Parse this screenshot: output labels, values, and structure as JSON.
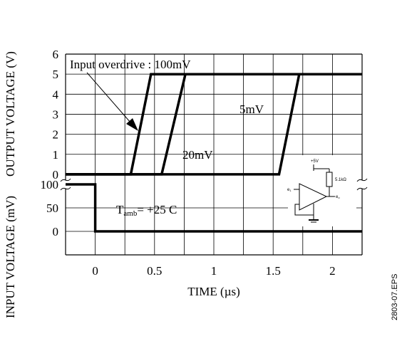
{
  "chart_data": {
    "type": "line",
    "xlabel": "TIME (µs)",
    "x_ticks": [
      "0",
      "0.5",
      "1",
      "1.5",
      "2"
    ],
    "xlim": [
      -0.25,
      2.25
    ],
    "output_panel": {
      "ylabel": "OUTPUT VOLTAGE (V)",
      "y_ticks": [
        "0",
        "1",
        "2",
        "3",
        "4",
        "5",
        "6"
      ],
      "ylim": [
        -0.5,
        6
      ],
      "series": [
        {
          "name": "100mV",
          "x": [
            -0.25,
            0.3,
            0.47,
            2.25
          ],
          "y": [
            0,
            0,
            5,
            5
          ]
        },
        {
          "name": "20mV",
          "x": [
            -0.25,
            0.56,
            0.76,
            2.25
          ],
          "y": [
            0,
            0,
            5,
            5
          ]
        },
        {
          "name": "5mV",
          "x": [
            -0.25,
            1.55,
            1.72,
            2.25
          ],
          "y": [
            0,
            0,
            5,
            5
          ]
        }
      ]
    },
    "input_panel": {
      "ylabel": "INPUT VOLTAGE (mV)",
      "y_ticks": [
        "0",
        "50",
        "100"
      ],
      "ylim": [
        -50,
        100
      ],
      "series": [
        {
          "x": [
            -0.25,
            0,
            0,
            2.25
          ],
          "y": [
            100,
            100,
            0,
            0
          ]
        }
      ]
    },
    "annotations": {
      "overdrive": "Input overdrive : 100mV",
      "label_5mv": "5mV",
      "label_20mv": "20mV",
      "tamb_prefix": "T",
      "tamb_sub": "amb",
      "tamb_value": "= +25 C"
    },
    "circuit": {
      "supply": "+5V",
      "resistor": "5.1kΩ",
      "input": "e",
      "input_sub": "1",
      "output": "e",
      "output_sub": "o"
    },
    "side_code": "2803-07.EPS"
  }
}
